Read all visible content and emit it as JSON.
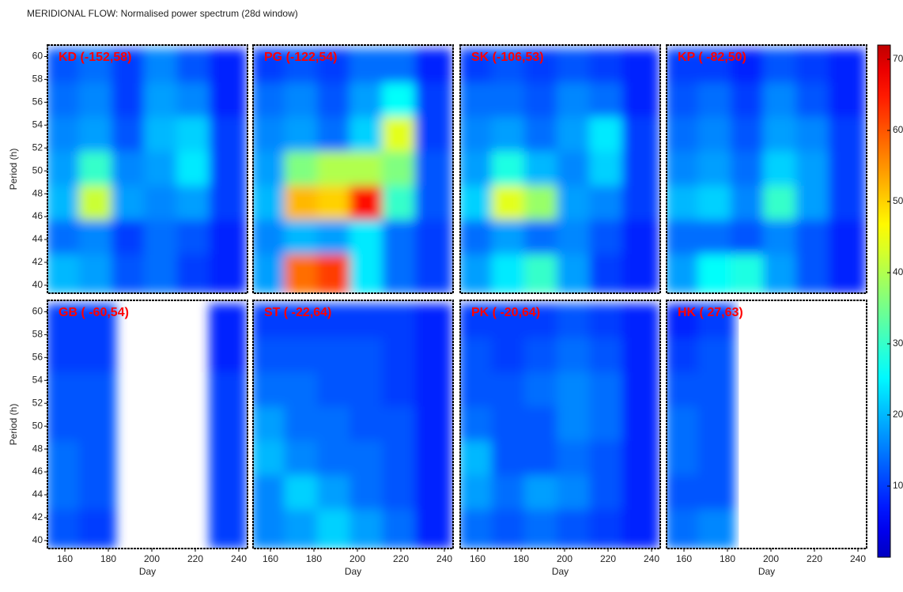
{
  "title": "MERIDIONAL FLOW: Normalised power spectrum (28d window)",
  "colorbar": {
    "colormap": "jet",
    "zlim": [
      0,
      72
    ],
    "ticks": [
      10,
      20,
      30,
      40,
      50,
      60,
      70
    ]
  },
  "chart_data": [
    {
      "type": "heatmap",
      "title": "KD (-152,58)",
      "ylabel": "Period (h)",
      "x": [
        160,
        175,
        190,
        205,
        220,
        235
      ],
      "y": [
        59,
        56,
        53,
        50,
        47,
        44,
        41
      ],
      "xlim": [
        152,
        244
      ],
      "ylim": [
        39.3,
        61
      ],
      "yticks": [
        40,
        42,
        44,
        46,
        48,
        50,
        52,
        54,
        56,
        58,
        60
      ],
      "values": [
        [
          12,
          14,
          10,
          16,
          12,
          8
        ],
        [
          14,
          16,
          10,
          18,
          16,
          8
        ],
        [
          16,
          18,
          12,
          20,
          22,
          10
        ],
        [
          18,
          30,
          16,
          18,
          24,
          10
        ],
        [
          20,
          42,
          18,
          16,
          18,
          10
        ],
        [
          14,
          16,
          10,
          14,
          12,
          8
        ],
        [
          20,
          18,
          12,
          14,
          10,
          8
        ]
      ]
    },
    {
      "type": "heatmap",
      "title": "PG (-122,54)",
      "x": [
        160,
        175,
        190,
        205,
        220,
        235
      ],
      "y": [
        59,
        56,
        53,
        50,
        47,
        44,
        41
      ],
      "xlim": [
        152,
        244
      ],
      "ylim": [
        39.3,
        61
      ],
      "values": [
        [
          10,
          12,
          10,
          14,
          14,
          8
        ],
        [
          14,
          16,
          12,
          18,
          26,
          10
        ],
        [
          16,
          18,
          14,
          22,
          44,
          10
        ],
        [
          18,
          36,
          40,
          40,
          36,
          12
        ],
        [
          20,
          52,
          50,
          66,
          30,
          12
        ],
        [
          16,
          20,
          18,
          24,
          14,
          10
        ],
        [
          18,
          58,
          62,
          24,
          14,
          10
        ]
      ]
    },
    {
      "type": "heatmap",
      "title": "SK (-106,53)",
      "x": [
        160,
        175,
        190,
        205,
        220,
        235
      ],
      "y": [
        59,
        56,
        53,
        50,
        47,
        44,
        41
      ],
      "xlim": [
        152,
        244
      ],
      "ylim": [
        39.3,
        61
      ],
      "values": [
        [
          10,
          12,
          10,
          12,
          10,
          8
        ],
        [
          14,
          14,
          12,
          16,
          14,
          8
        ],
        [
          16,
          18,
          14,
          18,
          24,
          10
        ],
        [
          18,
          28,
          20,
          16,
          22,
          10
        ],
        [
          22,
          44,
          38,
          18,
          16,
          10
        ],
        [
          14,
          18,
          14,
          16,
          12,
          8
        ],
        [
          18,
          24,
          30,
          18,
          10,
          8
        ]
      ]
    },
    {
      "type": "heatmap",
      "title": "KP ( -82,50)",
      "x": [
        160,
        175,
        190,
        205,
        220,
        235
      ],
      "y": [
        59,
        56,
        53,
        50,
        47,
        44,
        41
      ],
      "xlim": [
        152,
        244
      ],
      "ylim": [
        39.3,
        61
      ],
      "values": [
        [
          10,
          10,
          8,
          12,
          10,
          8
        ],
        [
          12,
          14,
          10,
          16,
          12,
          8
        ],
        [
          14,
          16,
          12,
          18,
          16,
          10
        ],
        [
          16,
          18,
          14,
          22,
          18,
          10
        ],
        [
          20,
          22,
          16,
          30,
          18,
          10
        ],
        [
          14,
          14,
          12,
          16,
          12,
          8
        ],
        [
          18,
          26,
          28,
          18,
          12,
          8
        ]
      ]
    },
    {
      "type": "heatmap",
      "title": "GB ( -60,54)",
      "xlabel": "Day",
      "ylabel": "Period (h)",
      "x": [
        160,
        175,
        190,
        205,
        220,
        235
      ],
      "y": [
        59,
        56,
        53,
        50,
        47,
        44,
        41
      ],
      "xlim": [
        152,
        244
      ],
      "ylim": [
        39.3,
        61
      ],
      "xticks": [
        160,
        180,
        200,
        220,
        240
      ],
      "yticks": [
        40,
        42,
        44,
        46,
        48,
        50,
        52,
        54,
        56,
        58,
        60
      ],
      "values": [
        [
          10,
          10,
          null,
          null,
          null,
          8
        ],
        [
          10,
          10,
          null,
          null,
          null,
          8
        ],
        [
          12,
          12,
          null,
          null,
          null,
          10
        ],
        [
          12,
          12,
          null,
          null,
          null,
          10
        ],
        [
          14,
          12,
          null,
          null,
          null,
          10
        ],
        [
          14,
          12,
          null,
          null,
          null,
          10
        ],
        [
          12,
          10,
          null,
          null,
          null,
          10
        ]
      ]
    },
    {
      "type": "heatmap",
      "title": "ST ( -22,64)",
      "xlabel": "Day",
      "x": [
        160,
        175,
        190,
        205,
        220,
        235
      ],
      "y": [
        59,
        56,
        53,
        50,
        47,
        44,
        41
      ],
      "xlim": [
        152,
        244
      ],
      "ylim": [
        39.3,
        61
      ],
      "xticks": [
        160,
        180,
        200,
        220,
        240
      ],
      "values": [
        [
          10,
          10,
          10,
          10,
          10,
          8
        ],
        [
          12,
          12,
          12,
          12,
          10,
          8
        ],
        [
          14,
          14,
          12,
          12,
          10,
          8
        ],
        [
          18,
          14,
          14,
          12,
          12,
          8
        ],
        [
          20,
          16,
          14,
          14,
          12,
          8
        ],
        [
          16,
          22,
          18,
          14,
          12,
          8
        ],
        [
          16,
          18,
          22,
          18,
          14,
          8
        ]
      ]
    },
    {
      "type": "heatmap",
      "title": "PK ( -20,64)",
      "xlabel": "Day",
      "x": [
        160,
        175,
        190,
        205,
        220,
        235
      ],
      "y": [
        59,
        56,
        53,
        50,
        47,
        44,
        41
      ],
      "xlim": [
        152,
        244
      ],
      "ylim": [
        39.3,
        61
      ],
      "xticks": [
        160,
        180,
        200,
        220,
        240
      ],
      "values": [
        [
          10,
          10,
          10,
          12,
          10,
          8
        ],
        [
          12,
          10,
          12,
          14,
          12,
          8
        ],
        [
          12,
          12,
          14,
          16,
          14,
          8
        ],
        [
          14,
          12,
          12,
          16,
          14,
          8
        ],
        [
          20,
          12,
          12,
          14,
          12,
          8
        ],
        [
          18,
          14,
          18,
          16,
          12,
          8
        ],
        [
          14,
          12,
          14,
          12,
          10,
          8
        ]
      ]
    },
    {
      "type": "heatmap",
      "title": "HK ( 27,63)",
      "xlabel": "Day",
      "x": [
        160,
        175,
        190,
        205,
        220,
        235
      ],
      "y": [
        59,
        56,
        53,
        50,
        47,
        44,
        41
      ],
      "xlim": [
        152,
        244
      ],
      "ylim": [
        39.3,
        61
      ],
      "xticks": [
        160,
        180,
        200,
        220,
        240
      ],
      "values": [
        [
          8,
          10,
          null,
          null,
          null,
          null
        ],
        [
          10,
          12,
          null,
          null,
          null,
          null
        ],
        [
          12,
          12,
          null,
          null,
          null,
          null
        ],
        [
          14,
          12,
          null,
          null,
          null,
          null
        ],
        [
          14,
          12,
          null,
          null,
          null,
          null
        ],
        [
          12,
          12,
          null,
          null,
          null,
          null
        ],
        [
          14,
          16,
          null,
          null,
          null,
          null
        ]
      ]
    }
  ]
}
